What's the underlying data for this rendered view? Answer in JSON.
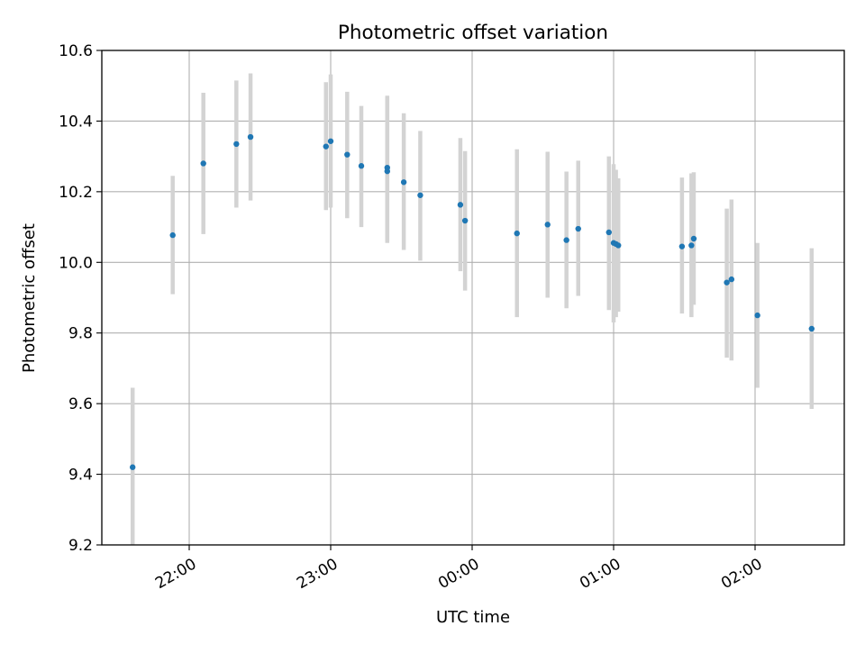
{
  "chart_data": {
    "type": "scatter",
    "title": "Photometric offset variation",
    "xlabel": "UTC time",
    "ylabel": "Photometric offset",
    "x_ticks": [
      "22:00",
      "23:00",
      "00:00",
      "01:00",
      "02:00"
    ],
    "y_ticks": [
      "9.2",
      "9.4",
      "9.6",
      "9.8",
      "10.0",
      "10.2",
      "10.4",
      "10.6"
    ],
    "ylim": [
      9.2,
      10.6
    ],
    "grid": true,
    "colors": {
      "points": "#1f77b4",
      "errorbars": "#d3d3d3",
      "grid": "#b0b0b0",
      "axes": "#000000"
    },
    "points": [
      {
        "t": "21:36",
        "y": 9.42,
        "lo": 9.2,
        "hi": 9.645
      },
      {
        "t": "21:53",
        "y": 10.077,
        "lo": 9.91,
        "hi": 10.245
      },
      {
        "t": "22:06",
        "y": 10.28,
        "lo": 10.08,
        "hi": 10.48
      },
      {
        "t": "22:20",
        "y": 10.335,
        "lo": 10.155,
        "hi": 10.515
      },
      {
        "t": "22:26",
        "y": 10.355,
        "lo": 10.175,
        "hi": 10.535
      },
      {
        "t": "22:58",
        "y": 10.328,
        "lo": 10.148,
        "hi": 10.51
      },
      {
        "t": "23:00",
        "y": 10.343,
        "lo": 10.155,
        "hi": 10.532
      },
      {
        "t": "23:07",
        "y": 10.305,
        "lo": 10.125,
        "hi": 10.483
      },
      {
        "t": "23:13",
        "y": 10.273,
        "lo": 10.1,
        "hi": 10.443
      },
      {
        "t": "23:24",
        "y": 10.258,
        "lo": 10.055,
        "hi": 10.472
      },
      {
        "t": "23:24",
        "y": 10.268,
        "lo": 10.06,
        "hi": 10.47
      },
      {
        "t": "23:31",
        "y": 10.227,
        "lo": 10.035,
        "hi": 10.422
      },
      {
        "t": "23:38",
        "y": 10.19,
        "lo": 10.005,
        "hi": 10.372
      },
      {
        "t": "23:55",
        "y": 10.163,
        "lo": 9.975,
        "hi": 10.352
      },
      {
        "t": "23:57",
        "y": 10.118,
        "lo": 9.92,
        "hi": 10.315
      },
      {
        "t": "00:19",
        "y": 10.082,
        "lo": 9.845,
        "hi": 10.32
      },
      {
        "t": "00:32",
        "y": 10.107,
        "lo": 9.9,
        "hi": 10.313
      },
      {
        "t": "00:40",
        "y": 10.063,
        "lo": 9.87,
        "hi": 10.257
      },
      {
        "t": "00:45",
        "y": 10.095,
        "lo": 9.905,
        "hi": 10.288
      },
      {
        "t": "00:58",
        "y": 10.085,
        "lo": 9.865,
        "hi": 10.3
      },
      {
        "t": "01:00",
        "y": 10.055,
        "lo": 9.83,
        "hi": 10.278
      },
      {
        "t": "01:01",
        "y": 10.052,
        "lo": 9.845,
        "hi": 10.262
      },
      {
        "t": "01:02",
        "y": 10.048,
        "lo": 9.86,
        "hi": 10.238
      },
      {
        "t": "01:29",
        "y": 10.045,
        "lo": 9.855,
        "hi": 10.24
      },
      {
        "t": "01:33",
        "y": 10.048,
        "lo": 9.845,
        "hi": 10.252
      },
      {
        "t": "01:34",
        "y": 10.067,
        "lo": 9.88,
        "hi": 10.255
      },
      {
        "t": "01:48",
        "y": 9.943,
        "lo": 9.73,
        "hi": 10.152
      },
      {
        "t": "01:50",
        "y": 9.952,
        "lo": 9.722,
        "hi": 10.178
      },
      {
        "t": "02:01",
        "y": 9.85,
        "lo": 9.645,
        "hi": 10.055
      },
      {
        "t": "02:24",
        "y": 9.812,
        "lo": 9.585,
        "hi": 10.04
      }
    ]
  }
}
